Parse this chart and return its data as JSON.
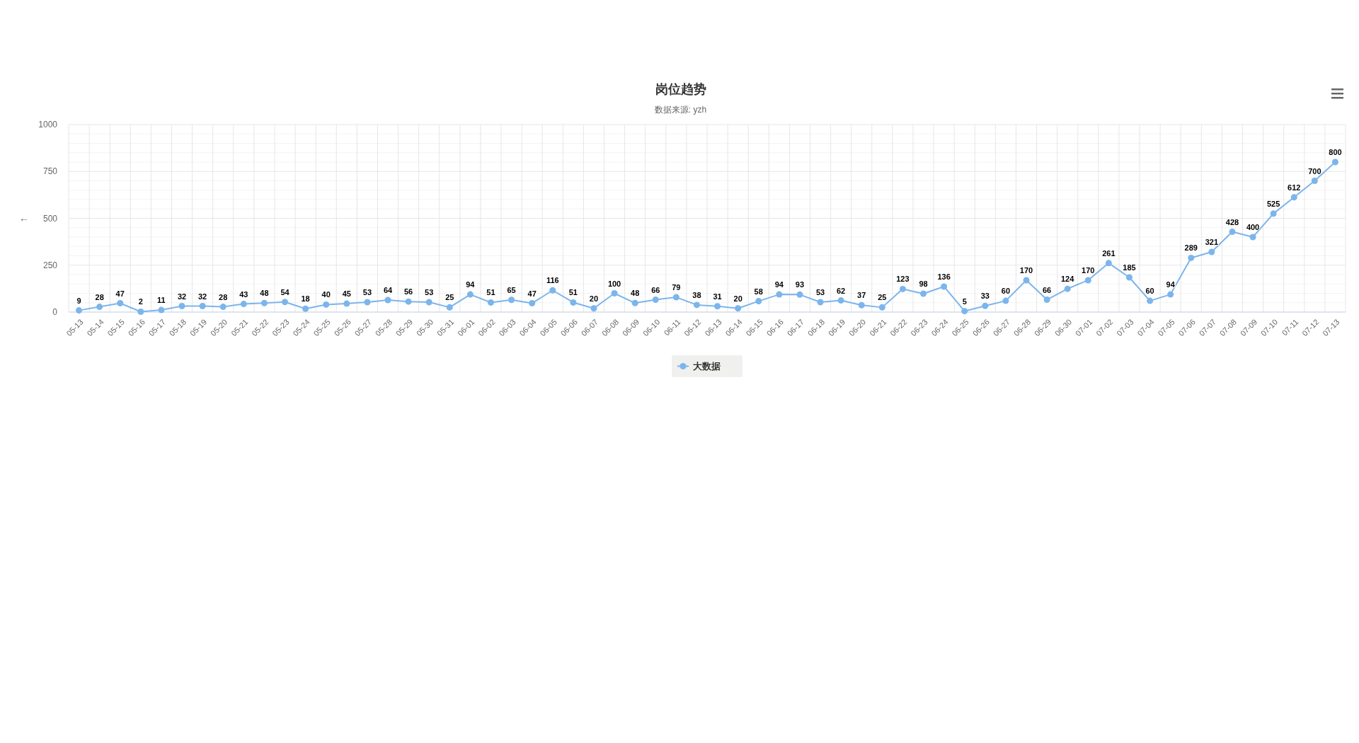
{
  "chart_data": {
    "type": "line",
    "title": "岗位趋势",
    "subtitle": "数据来源: yzh",
    "ylabel": "←",
    "categories": [
      "05-13",
      "05-14",
      "05-15",
      "05-16",
      "05-17",
      "05-18",
      "05-19",
      "05-20",
      "05-21",
      "05-22",
      "05-23",
      "05-24",
      "05-25",
      "05-26",
      "05-27",
      "05-28",
      "05-29",
      "05-30",
      "05-31",
      "06-01",
      "06-02",
      "06-03",
      "06-04",
      "06-05",
      "06-06",
      "06-07",
      "06-08",
      "06-09",
      "06-10",
      "06-11",
      "06-12",
      "06-13",
      "06-14",
      "06-15",
      "06-16",
      "06-17",
      "06-18",
      "06-19",
      "06-20",
      "06-21",
      "06-22",
      "06-23",
      "06-24",
      "06-25",
      "06-26",
      "06-27",
      "06-28",
      "06-29",
      "06-30",
      "07-01",
      "07-02",
      "07-03",
      "07-04",
      "07-05",
      "07-06",
      "07-07",
      "07-08",
      "07-09",
      "07-10",
      "07-11",
      "07-12",
      "07-13"
    ],
    "series": [
      {
        "name": "大数据",
        "color": "#7cb5ec",
        "values": [
          9,
          28,
          47,
          2,
          11,
          32,
          32,
          28,
          43,
          48,
          54,
          18,
          40,
          45,
          53,
          64,
          56,
          53,
          25,
          94,
          51,
          65,
          47,
          116,
          51,
          20,
          100,
          48,
          66,
          79,
          38,
          31,
          20,
          58,
          94,
          93,
          53,
          62,
          37,
          25,
          123,
          98,
          136,
          5,
          33,
          60,
          170,
          66,
          124,
          170,
          261,
          185,
          60,
          94,
          289,
          321,
          428,
          400,
          525,
          612,
          700,
          800
        ]
      }
    ],
    "ylim": [
      0,
      1000
    ],
    "yticks": [
      0,
      250,
      500,
      750,
      1000
    ],
    "grid": true,
    "legend": "bottom",
    "marker": "circle",
    "data_labels": true
  }
}
